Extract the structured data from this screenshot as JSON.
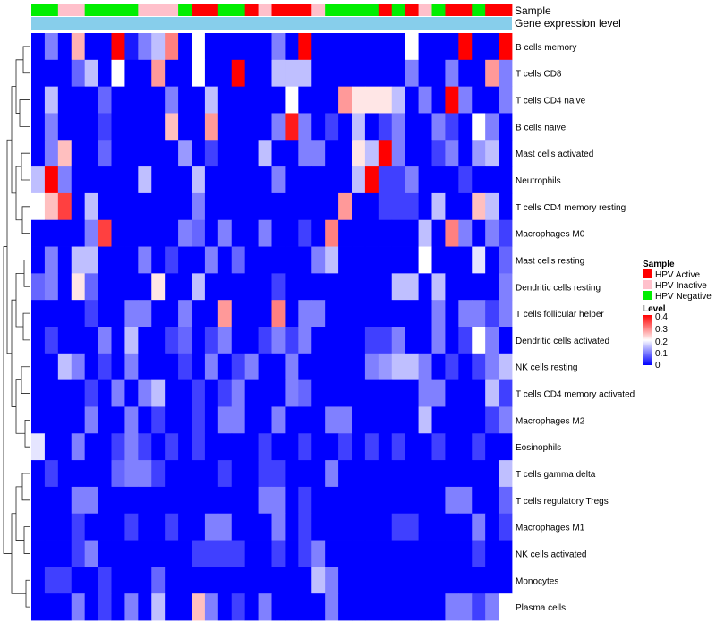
{
  "chart_data": {
    "type": "heatmap",
    "annotation_labels": [
      "Sample",
      "Gene expression level"
    ],
    "gene_expression_color": "#87ceeb",
    "sample_groups": [
      "HPV Active",
      "HPV Inactive",
      "HPV Negative"
    ],
    "sample_colors": {
      "HPV Active": "#ff0000",
      "HPV Inactive": "#ffc0cb",
      "HPV Negative": "#00ee00"
    },
    "column_samples": [
      "HPV Negative",
      "HPV Negative",
      "HPV Inactive",
      "HPV Inactive",
      "HPV Negative",
      "HPV Negative",
      "HPV Negative",
      "HPV Negative",
      "HPV Inactive",
      "HPV Inactive",
      "HPV Inactive",
      "HPV Negative",
      "HPV Active",
      "HPV Active",
      "HPV Negative",
      "HPV Negative",
      "HPV Active",
      "HPV Inactive",
      "HPV Active",
      "HPV Active",
      "HPV Active",
      "HPV Inactive",
      "HPV Negative",
      "HPV Negative",
      "HPV Negative",
      "HPV Negative",
      "HPV Active",
      "HPV Negative",
      "HPV Active",
      "HPV Inactive",
      "HPV Negative",
      "HPV Active",
      "HPV Active",
      "HPV Negative",
      "HPV Active",
      "HPV Active"
    ],
    "rows": [
      "B cells memory",
      "T cells CD8",
      "T cells CD4 naive",
      "B cells naive",
      "Mast cells activated",
      "Neutrophils",
      "T cells CD4 memory resting",
      "Macrophages M0",
      "Mast cells resting",
      "Dendritic cells resting",
      "T cells follicular helper",
      "Dendritic cells activated",
      "NK cells resting",
      "T cells CD4 memory activated",
      "Macrophages M2",
      "Eosinophils",
      "T cells gamma delta",
      "T cells regulatory  Tregs",
      "Macrophages M1",
      "NK cells activated",
      "Monocytes",
      "Plasma cells"
    ],
    "values": [
      [
        0.0,
        0.1,
        0.0,
        0.26,
        0.0,
        0.0,
        0.4,
        0.02,
        0.1,
        0.15,
        0.3,
        0.0,
        0.2,
        0.0,
        0.0,
        0.0,
        0.0,
        0.0,
        0.1,
        0.0,
        0.4,
        0.0,
        0.0,
        0.0,
        0.0,
        0.0,
        0.0,
        0.0,
        0.2,
        0.0,
        0.0,
        0.0,
        0.4,
        0.0,
        0.0,
        0.4
      ],
      [
        0.0,
        0.0,
        0.0,
        0.08,
        0.15,
        0.0,
        0.2,
        0.0,
        0.0,
        0.28,
        0.0,
        0.0,
        0.2,
        0.0,
        0.0,
        0.4,
        0.0,
        0.0,
        0.15,
        0.15,
        0.15,
        0.0,
        0.0,
        0.0,
        0.0,
        0.0,
        0.0,
        0.0,
        0.1,
        0.0,
        0.0,
        0.1,
        0.0,
        0.0,
        0.28,
        0.1
      ],
      [
        0.0,
        0.15,
        0.0,
        0.0,
        0.0,
        0.08,
        0.0,
        0.0,
        0.0,
        0.0,
        0.1,
        0.0,
        0.0,
        0.15,
        0.0,
        0.0,
        0.0,
        0.0,
        0.0,
        0.2,
        0.0,
        0.0,
        0.0,
        0.28,
        0.22,
        0.22,
        0.22,
        0.15,
        0.0,
        0.1,
        0.0,
        0.4,
        0.1,
        0.0,
        0.0,
        0.1
      ],
      [
        0.0,
        0.1,
        0.0,
        0.0,
        0.0,
        0.05,
        0.0,
        0.0,
        0.0,
        0.0,
        0.25,
        0.0,
        0.0,
        0.28,
        0.0,
        0.0,
        0.0,
        0.0,
        0.1,
        0.38,
        0.1,
        0.0,
        0.05,
        0.0,
        0.15,
        0.0,
        0.05,
        0.1,
        0.0,
        0.0,
        0.1,
        0.05,
        0.0,
        0.2,
        0.1,
        0.0
      ],
      [
        0.0,
        0.1,
        0.25,
        0.0,
        0.0,
        0.08,
        0.0,
        0.0,
        0.0,
        0.0,
        0.0,
        0.12,
        0.0,
        0.05,
        0.0,
        0.0,
        0.0,
        0.15,
        0.0,
        0.0,
        0.1,
        0.1,
        0.0,
        0.0,
        0.22,
        0.15,
        0.4,
        0.1,
        0.0,
        0.0,
        0.05,
        0.1,
        0.0,
        0.12,
        0.15,
        0.0
      ],
      [
        0.15,
        0.4,
        0.1,
        0.0,
        0.0,
        0.0,
        0.0,
        0.0,
        0.15,
        0.0,
        0.0,
        0.0,
        0.15,
        0.0,
        0.0,
        0.0,
        0.0,
        0.0,
        0.1,
        0.0,
        0.0,
        0.0,
        0.0,
        0.0,
        0.15,
        0.4,
        0.05,
        0.05,
        0.1,
        0.0,
        0.0,
        0.0,
        0.05,
        0.0,
        0.0,
        0.0
      ],
      [
        0.2,
        0.25,
        0.35,
        0.0,
        0.15,
        0.0,
        0.0,
        0.0,
        0.0,
        0.0,
        0.0,
        0.0,
        0.1,
        0.0,
        0.0,
        0.0,
        0.0,
        0.0,
        0.0,
        0.0,
        0.0,
        0.0,
        0.0,
        0.28,
        0.0,
        0.0,
        0.05,
        0.05,
        0.05,
        0.0,
        0.15,
        0.0,
        0.0,
        0.25,
        0.15,
        0.0
      ],
      [
        0.0,
        0.0,
        0.0,
        0.0,
        0.1,
        0.35,
        0.0,
        0.0,
        0.0,
        0.0,
        0.0,
        0.1,
        0.08,
        0.0,
        0.1,
        0.0,
        0.0,
        0.1,
        0.0,
        0.0,
        0.05,
        0.0,
        0.3,
        0.0,
        0.0,
        0.0,
        0.0,
        0.0,
        0.0,
        0.15,
        0.0,
        0.3,
        0.1,
        0.0,
        0.1,
        0.05
      ],
      [
        0.0,
        0.1,
        0.0,
        0.15,
        0.15,
        0.0,
        0.0,
        0.0,
        0.1,
        0.0,
        0.05,
        0.0,
        0.0,
        0.1,
        0.0,
        0.08,
        0.0,
        0.0,
        0.0,
        0.0,
        0.0,
        0.1,
        0.15,
        0.0,
        0.0,
        0.0,
        0.0,
        0.0,
        0.0,
        0.2,
        0.0,
        0.0,
        0.0,
        0.18,
        0.0,
        0.08
      ],
      [
        0.08,
        0.1,
        0.0,
        0.22,
        0.08,
        0.0,
        0.0,
        0.0,
        0.0,
        0.22,
        0.0,
        0.0,
        0.15,
        0.0,
        0.0,
        0.0,
        0.0,
        0.0,
        0.05,
        0.0,
        0.0,
        0.0,
        0.0,
        0.0,
        0.0,
        0.0,
        0.0,
        0.15,
        0.15,
        0.0,
        0.15,
        0.0,
        0.0,
        0.0,
        0.0,
        0.1
      ],
      [
        0.0,
        0.0,
        0.0,
        0.0,
        0.05,
        0.0,
        0.0,
        0.1,
        0.1,
        0.0,
        0.0,
        0.1,
        0.0,
        0.0,
        0.28,
        0.0,
        0.0,
        0.0,
        0.3,
        0.0,
        0.1,
        0.1,
        0.0,
        0.0,
        0.0,
        0.0,
        0.0,
        0.0,
        0.0,
        0.0,
        0.1,
        0.0,
        0.1,
        0.1,
        0.05,
        0.1
      ],
      [
        0.0,
        0.05,
        0.0,
        0.0,
        0.0,
        0.1,
        0.0,
        0.15,
        0.0,
        0.0,
        0.05,
        0.08,
        0.0,
        0.05,
        0.1,
        0.0,
        0.0,
        0.05,
        0.1,
        0.05,
        0.1,
        0.0,
        0.0,
        0.0,
        0.0,
        0.05,
        0.05,
        0.1,
        0.0,
        0.0,
        0.1,
        0.0,
        0.05,
        0.2,
        0.1,
        0.0
      ],
      [
        0.0,
        0.0,
        0.15,
        0.1,
        0.0,
        0.05,
        0.0,
        0.1,
        0.0,
        0.0,
        0.0,
        0.05,
        0.0,
        0.1,
        0.0,
        0.05,
        0.1,
        0.0,
        0.0,
        0.1,
        0.0,
        0.0,
        0.0,
        0.0,
        0.0,
        0.1,
        0.12,
        0.15,
        0.15,
        0.1,
        0.0,
        0.05,
        0.0,
        0.05,
        0.1,
        0.15
      ],
      [
        0.0,
        0.0,
        0.0,
        0.0,
        0.05,
        0.0,
        0.1,
        0.0,
        0.1,
        0.15,
        0.0,
        0.0,
        0.05,
        0.0,
        0.05,
        0.1,
        0.0,
        0.0,
        0.0,
        0.1,
        0.08,
        0.0,
        0.0,
        0.0,
        0.0,
        0.0,
        0.0,
        0.0,
        0.0,
        0.1,
        0.1,
        0.0,
        0.0,
        0.0,
        0.15,
        0.05
      ],
      [
        0.0,
        0.0,
        0.0,
        0.0,
        0.1,
        0.0,
        0.0,
        0.1,
        0.0,
        0.05,
        0.0,
        0.0,
        0.05,
        0.0,
        0.1,
        0.1,
        0.0,
        0.0,
        0.1,
        0.0,
        0.0,
        0.0,
        0.1,
        0.1,
        0.0,
        0.0,
        0.0,
        0.0,
        0.0,
        0.15,
        0.0,
        0.0,
        0.0,
        0.0,
        0.05,
        0.1
      ],
      [
        0.18,
        0.0,
        0.0,
        0.1,
        0.0,
        0.0,
        0.05,
        0.1,
        0.05,
        0.0,
        0.05,
        0.0,
        0.05,
        0.0,
        0.0,
        0.0,
        0.0,
        0.05,
        0.0,
        0.0,
        0.05,
        0.0,
        0.0,
        0.05,
        0.0,
        0.05,
        0.0,
        0.05,
        0.0,
        0.0,
        0.05,
        0.0,
        0.0,
        0.05,
        0.0,
        0.0
      ],
      [
        0.0,
        0.05,
        0.0,
        0.0,
        0.0,
        0.0,
        0.08,
        0.1,
        0.1,
        0.05,
        0.0,
        0.0,
        0.0,
        0.0,
        0.05,
        0.0,
        0.0,
        0.05,
        0.05,
        0.0,
        0.0,
        0.0,
        0.1,
        0.0,
        0.0,
        0.0,
        0.0,
        0.0,
        0.0,
        0.0,
        0.0,
        0.0,
        0.0,
        0.0,
        0.0,
        0.15
      ],
      [
        0.0,
        0.0,
        0.0,
        0.1,
        0.1,
        0.0,
        0.0,
        0.0,
        0.0,
        0.0,
        0.0,
        0.0,
        0.0,
        0.0,
        0.0,
        0.0,
        0.0,
        0.1,
        0.1,
        0.0,
        0.05,
        0.0,
        0.0,
        0.0,
        0.0,
        0.0,
        0.0,
        0.0,
        0.0,
        0.0,
        0.0,
        0.1,
        0.1,
        0.0,
        0.0,
        0.08
      ],
      [
        0.0,
        0.0,
        0.0,
        0.05,
        0.0,
        0.0,
        0.0,
        0.05,
        0.0,
        0.0,
        0.05,
        0.0,
        0.0,
        0.1,
        0.1,
        0.0,
        0.0,
        0.0,
        0.1,
        0.0,
        0.05,
        0.0,
        0.0,
        0.0,
        0.0,
        0.0,
        0.0,
        0.05,
        0.05,
        0.0,
        0.0,
        0.0,
        0.0,
        0.1,
        0.0,
        0.05
      ],
      [
        0.0,
        0.0,
        0.0,
        0.05,
        0.1,
        0.0,
        0.0,
        0.0,
        0.0,
        0.0,
        0.0,
        0.0,
        0.05,
        0.05,
        0.05,
        0.05,
        0.0,
        0.0,
        0.05,
        0.0,
        0.05,
        0.1,
        0.0,
        0.0,
        0.0,
        0.0,
        0.0,
        0.0,
        0.0,
        0.0,
        0.0,
        0.0,
        0.0,
        0.05,
        0.0,
        0.0
      ],
      [
        0.0,
        0.05,
        0.05,
        0.0,
        0.0,
        0.05,
        0.0,
        0.0,
        0.0,
        0.08,
        0.0,
        0.0,
        0.0,
        0.0,
        0.0,
        0.0,
        0.0,
        0.0,
        0.0,
        0.0,
        0.0,
        0.15,
        0.1,
        0.0,
        0.0,
        0.0,
        0.0,
        0.0,
        0.0,
        0.0,
        0.0,
        0.0,
        0.0,
        0.0,
        0.0,
        0.0
      ],
      [
        0.0,
        0.0,
        0.0,
        0.1,
        0.0,
        0.05,
        0.0,
        0.1,
        0.0,
        0.15,
        0.0,
        0.0,
        0.25,
        0.1,
        0.0,
        0.05,
        0.0,
        0.1,
        0.0,
        0.0,
        0.0,
        0.0,
        0.1,
        0.0,
        0.0,
        0.0,
        0.0,
        0.0,
        0.0,
        0.0,
        0.0,
        0.1,
        0.1,
        0.05,
        0.1,
        0.2
      ]
    ],
    "legend": {
      "sample_title": "Sample",
      "level_title": "Level",
      "level_ticks": [
        "0.4",
        "0.3",
        "0.2",
        "0.1",
        "0"
      ],
      "range": [
        0,
        0.4
      ],
      "low_color": "#0000ff",
      "mid_color": "#ffffff",
      "high_color": "#ff0000"
    }
  }
}
